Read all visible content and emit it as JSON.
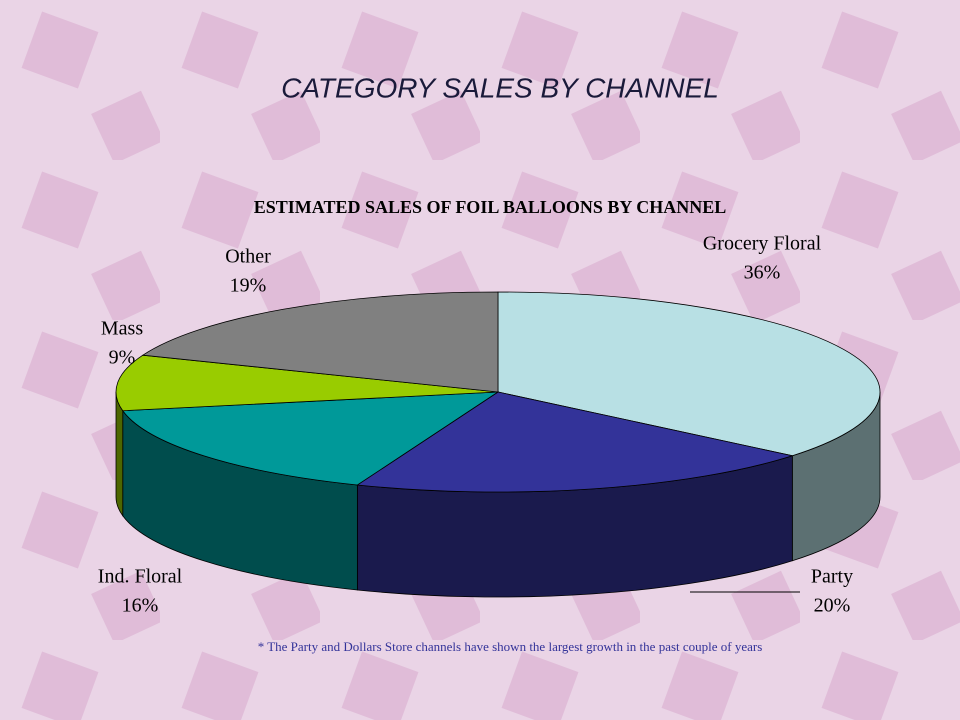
{
  "slide_title": "CATEGORY SALES BY CHANNEL",
  "chart_data": {
    "type": "pie",
    "title": "ESTIMATED SALES OF FOIL BALLOONS BY CHANNEL",
    "categories": [
      "Grocery Floral",
      "Party",
      "Ind. Floral",
      "Mass",
      "Other"
    ],
    "values": [
      36,
      20,
      16,
      9,
      19
    ],
    "value_labels": [
      "36%",
      "20%",
      "16%",
      "9%",
      "19%"
    ],
    "colors": [
      "#b8e0e4",
      "#333399",
      "#009999",
      "#99cc00",
      "#808080"
    ],
    "annotation": "* The  Party and Dollars Store channels have shown the largest growth in the past couple of years"
  }
}
